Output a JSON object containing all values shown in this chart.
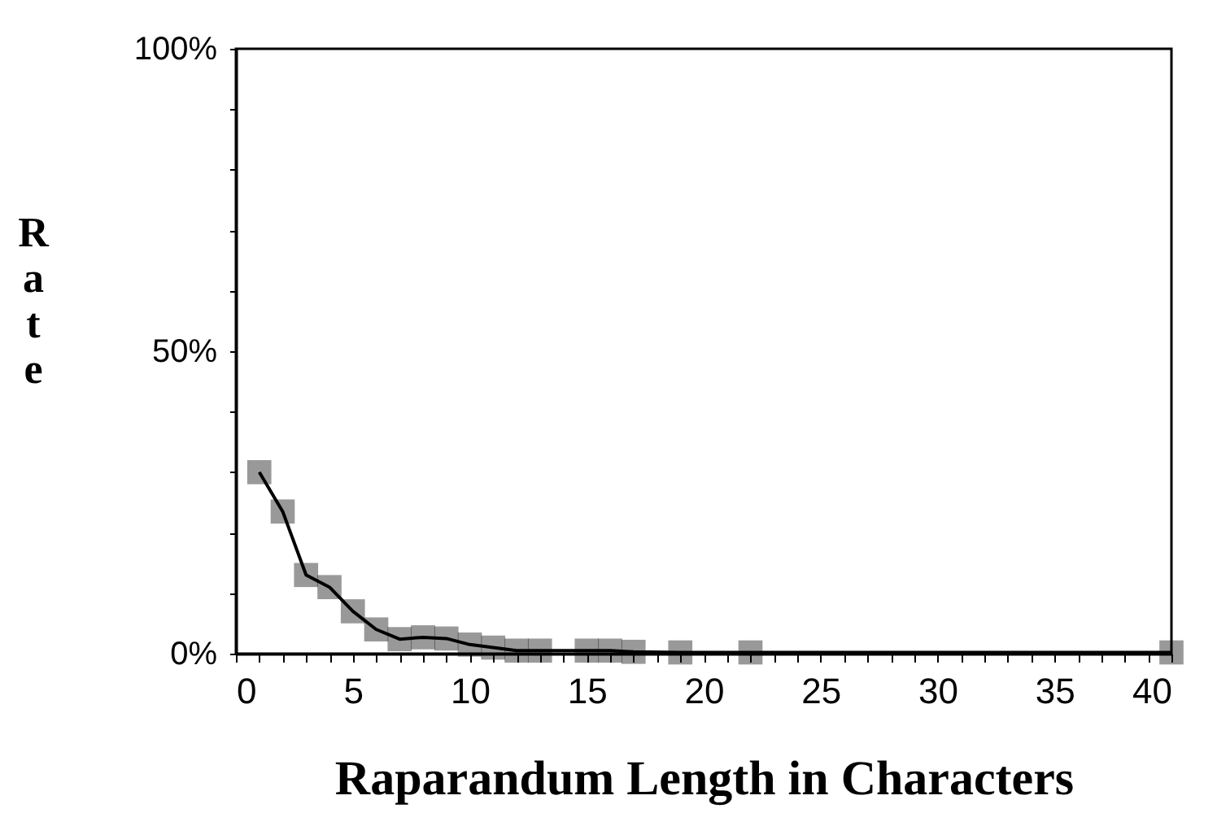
{
  "chart_data": {
    "type": "line",
    "xlabel": "Raparandum Length in Characters",
    "ylabel": "Rate",
    "x": [
      1,
      2,
      3,
      4,
      5,
      6,
      7,
      8,
      9,
      10,
      11,
      12,
      13,
      15,
      16,
      17,
      19,
      22,
      40
    ],
    "series": [
      {
        "color": "#000000",
        "values": [
          30,
          23.5,
          13,
          11,
          7,
          4,
          2.4,
          2.7,
          2.5,
          1.5,
          1,
          0.5,
          0.5,
          0.5,
          0.5,
          0.3,
          0.2,
          0.2,
          0.2
        ]
      }
    ],
    "marker": "square",
    "line_style": "solid",
    "grid": false,
    "xlim": [
      0,
      40
    ],
    "xticks": [
      0,
      {
        "value": 1,
        "label": null
      },
      {
        "value": 2,
        "label": null
      },
      {
        "value": 3,
        "label": null
      },
      {
        "value": 4,
        "label": null
      },
      5,
      {
        "value": 6,
        "label": null
      },
      {
        "value": 7,
        "label": null
      },
      {
        "value": 8,
        "label": null
      },
      {
        "value": 9,
        "label": null
      },
      10,
      {
        "value": 11,
        "label": null
      },
      {
        "value": 12,
        "label": null
      },
      {
        "value": 13,
        "label": null
      },
      {
        "value": 14,
        "label": null
      },
      15,
      {
        "value": 16,
        "label": null
      },
      {
        "value": 17,
        "label": null
      },
      {
        "value": 18,
        "label": null
      },
      {
        "value": 19,
        "label": null
      },
      20,
      {
        "value": 21,
        "label": null
      },
      {
        "value": 22,
        "label": null
      },
      {
        "value": 23,
        "label": null
      },
      {
        "value": 24,
        "label": null
      },
      25,
      {
        "value": 26,
        "label": null
      },
      {
        "value": 27,
        "label": null
      },
      {
        "value": 28,
        "label": null
      },
      {
        "value": 29,
        "label": null
      },
      30,
      {
        "value": 31,
        "label": null
      },
      {
        "value": 32,
        "label": null
      },
      {
        "value": 33,
        "label": null
      },
      {
        "value": 34,
        "label": null
      },
      35,
      {
        "value": 36,
        "label": null
      },
      {
        "value": 37,
        "label": null
      },
      {
        "value": 38,
        "label": null
      },
      {
        "value": 39,
        "label": null
      },
      40
    ],
    "ylim": [
      0,
      100
    ],
    "yticks": [
      {
        "value": 0,
        "label": "0%"
      },
      {
        "value": 10,
        "label": null
      },
      {
        "value": 20,
        "label": null
      },
      {
        "value": 30,
        "label": null
      },
      {
        "value": 40,
        "label": null
      },
      {
        "value": 50,
        "label": "50%"
      },
      {
        "value": 60,
        "label": null
      },
      {
        "value": 70,
        "label": null
      },
      {
        "value": 80,
        "label": null
      },
      {
        "value": 90,
        "label": null
      },
      {
        "value": 100,
        "label": "100%"
      }
    ]
  }
}
